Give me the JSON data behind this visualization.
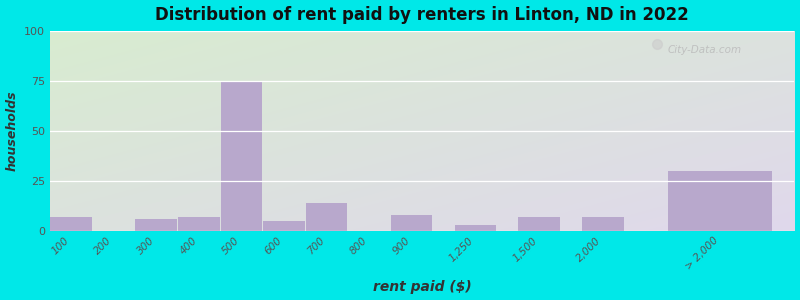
{
  "title": "Distribution of rent paid by renters in Linton, ND in 2022",
  "xlabel": "rent paid ($)",
  "ylabel": "households",
  "ylim": [
    0,
    100
  ],
  "yticks": [
    0,
    25,
    50,
    75,
    100
  ],
  "bar_color": "#b8a8cc",
  "background_outer": "#00e8e8",
  "background_top_left": "#d8ecd0",
  "background_bottom_right": "#e0d8ec",
  "categories": [
    "100",
    "200",
    "300",
    "400",
    "500",
    "600",
    "700",
    "800",
    "900",
    "1,250",
    "1,500",
    "2,000",
    "> 2,000"
  ],
  "values": [
    7,
    0,
    6,
    7,
    75,
    5,
    14,
    0,
    8,
    3,
    7,
    7,
    30
  ],
  "bar_lefts": [
    0,
    1,
    2,
    3,
    4,
    5,
    6,
    7,
    8,
    9.5,
    11.0,
    12.5,
    14.5
  ],
  "bar_widths": [
    1,
    1,
    1,
    1,
    1,
    1,
    1,
    1,
    1,
    1.0,
    1.0,
    1.0,
    2.5
  ],
  "xtick_positions": [
    0.5,
    1.5,
    2.5,
    3.5,
    4.5,
    5.5,
    6.5,
    7.5,
    8.5,
    10.0,
    11.5,
    13.0,
    15.75
  ],
  "watermark": "City-Data.com"
}
